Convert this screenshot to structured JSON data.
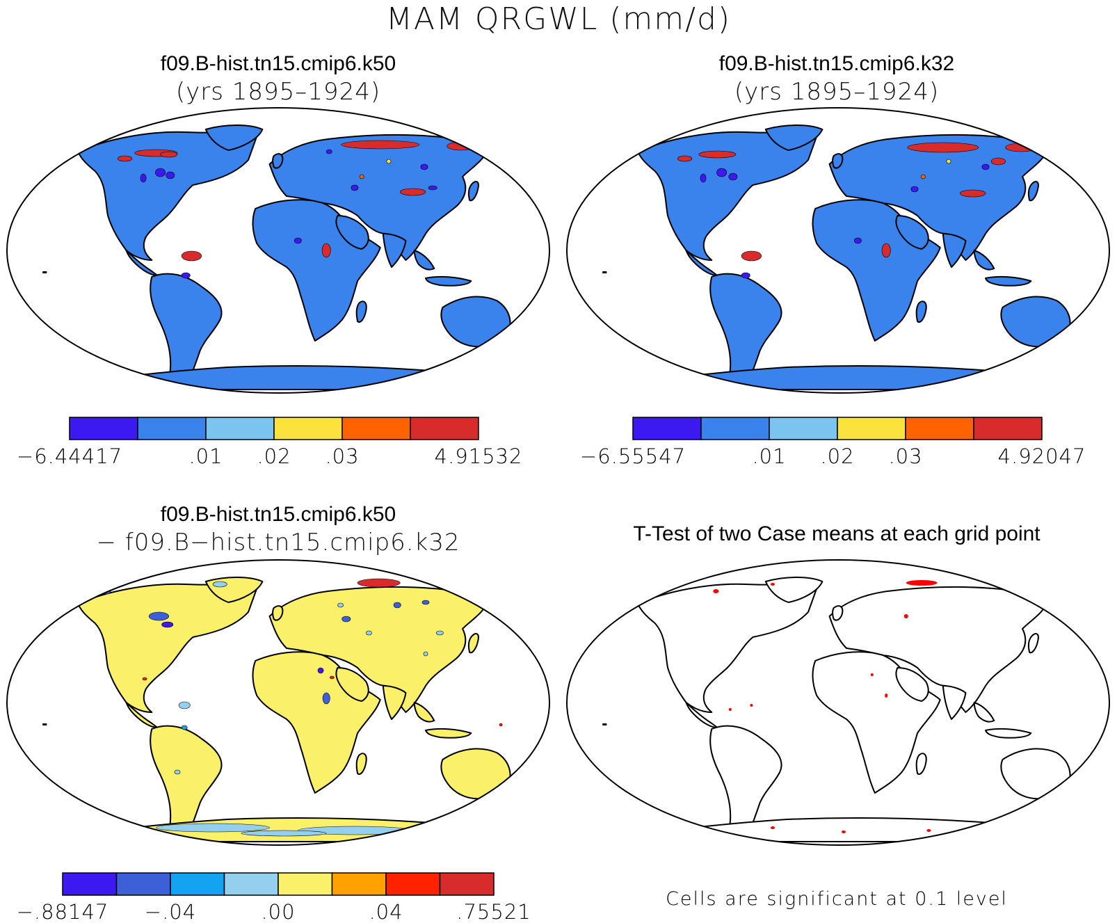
{
  "figure": {
    "title": "MAM QRGWL (mm/d)"
  },
  "panels": [
    {
      "id": "k50",
      "title": "f09.B-hist.tn15.cmip6.k50",
      "subtitle": "(yrs 1895–1924)",
      "land_color": "#3a83ec",
      "colorbar": {
        "colors": [
          "#3c19f0",
          "#3a83ec",
          "#7cc4f0",
          "#fbe23c",
          "#ff6300",
          "#d82b2b"
        ],
        "labels": [
          "−6.44417",
          ".01",
          ".02",
          ".03",
          "4.91532"
        ]
      }
    },
    {
      "id": "k32",
      "title": "f09.B-hist.tn15.cmip6.k32",
      "subtitle": "(yrs 1895–1924)",
      "land_color": "#3a83ec",
      "colorbar": {
        "colors": [
          "#3c19f0",
          "#3a83ec",
          "#7cc4f0",
          "#fbe23c",
          "#ff6300",
          "#d82b2b"
        ],
        "labels": [
          "−6.55547",
          ".01",
          ".02",
          ".03",
          "4.92047"
        ]
      }
    },
    {
      "id": "diff",
      "title": "f09.B-hist.tn15.cmip6.k50",
      "subtitle": "− f09.B−hist.tn15.cmip6.k32",
      "land_color": "#faf06a",
      "colorbar": {
        "colors": [
          "#3c19f0",
          "#3d60d8",
          "#14a3f0",
          "#95cfee",
          "#faf06a",
          "#ffa100",
          "#ff2200",
          "#d82b2b"
        ],
        "labels": [
          "−.88147",
          "−.04",
          ".00",
          ".04",
          ".75521"
        ]
      }
    },
    {
      "id": "ttest",
      "title": "T-Test of two Case means at each grid point",
      "land_color": "#ffffff",
      "significance_color": "#ff0000",
      "note": "Cells are significant at 0.1 level"
    }
  ]
}
